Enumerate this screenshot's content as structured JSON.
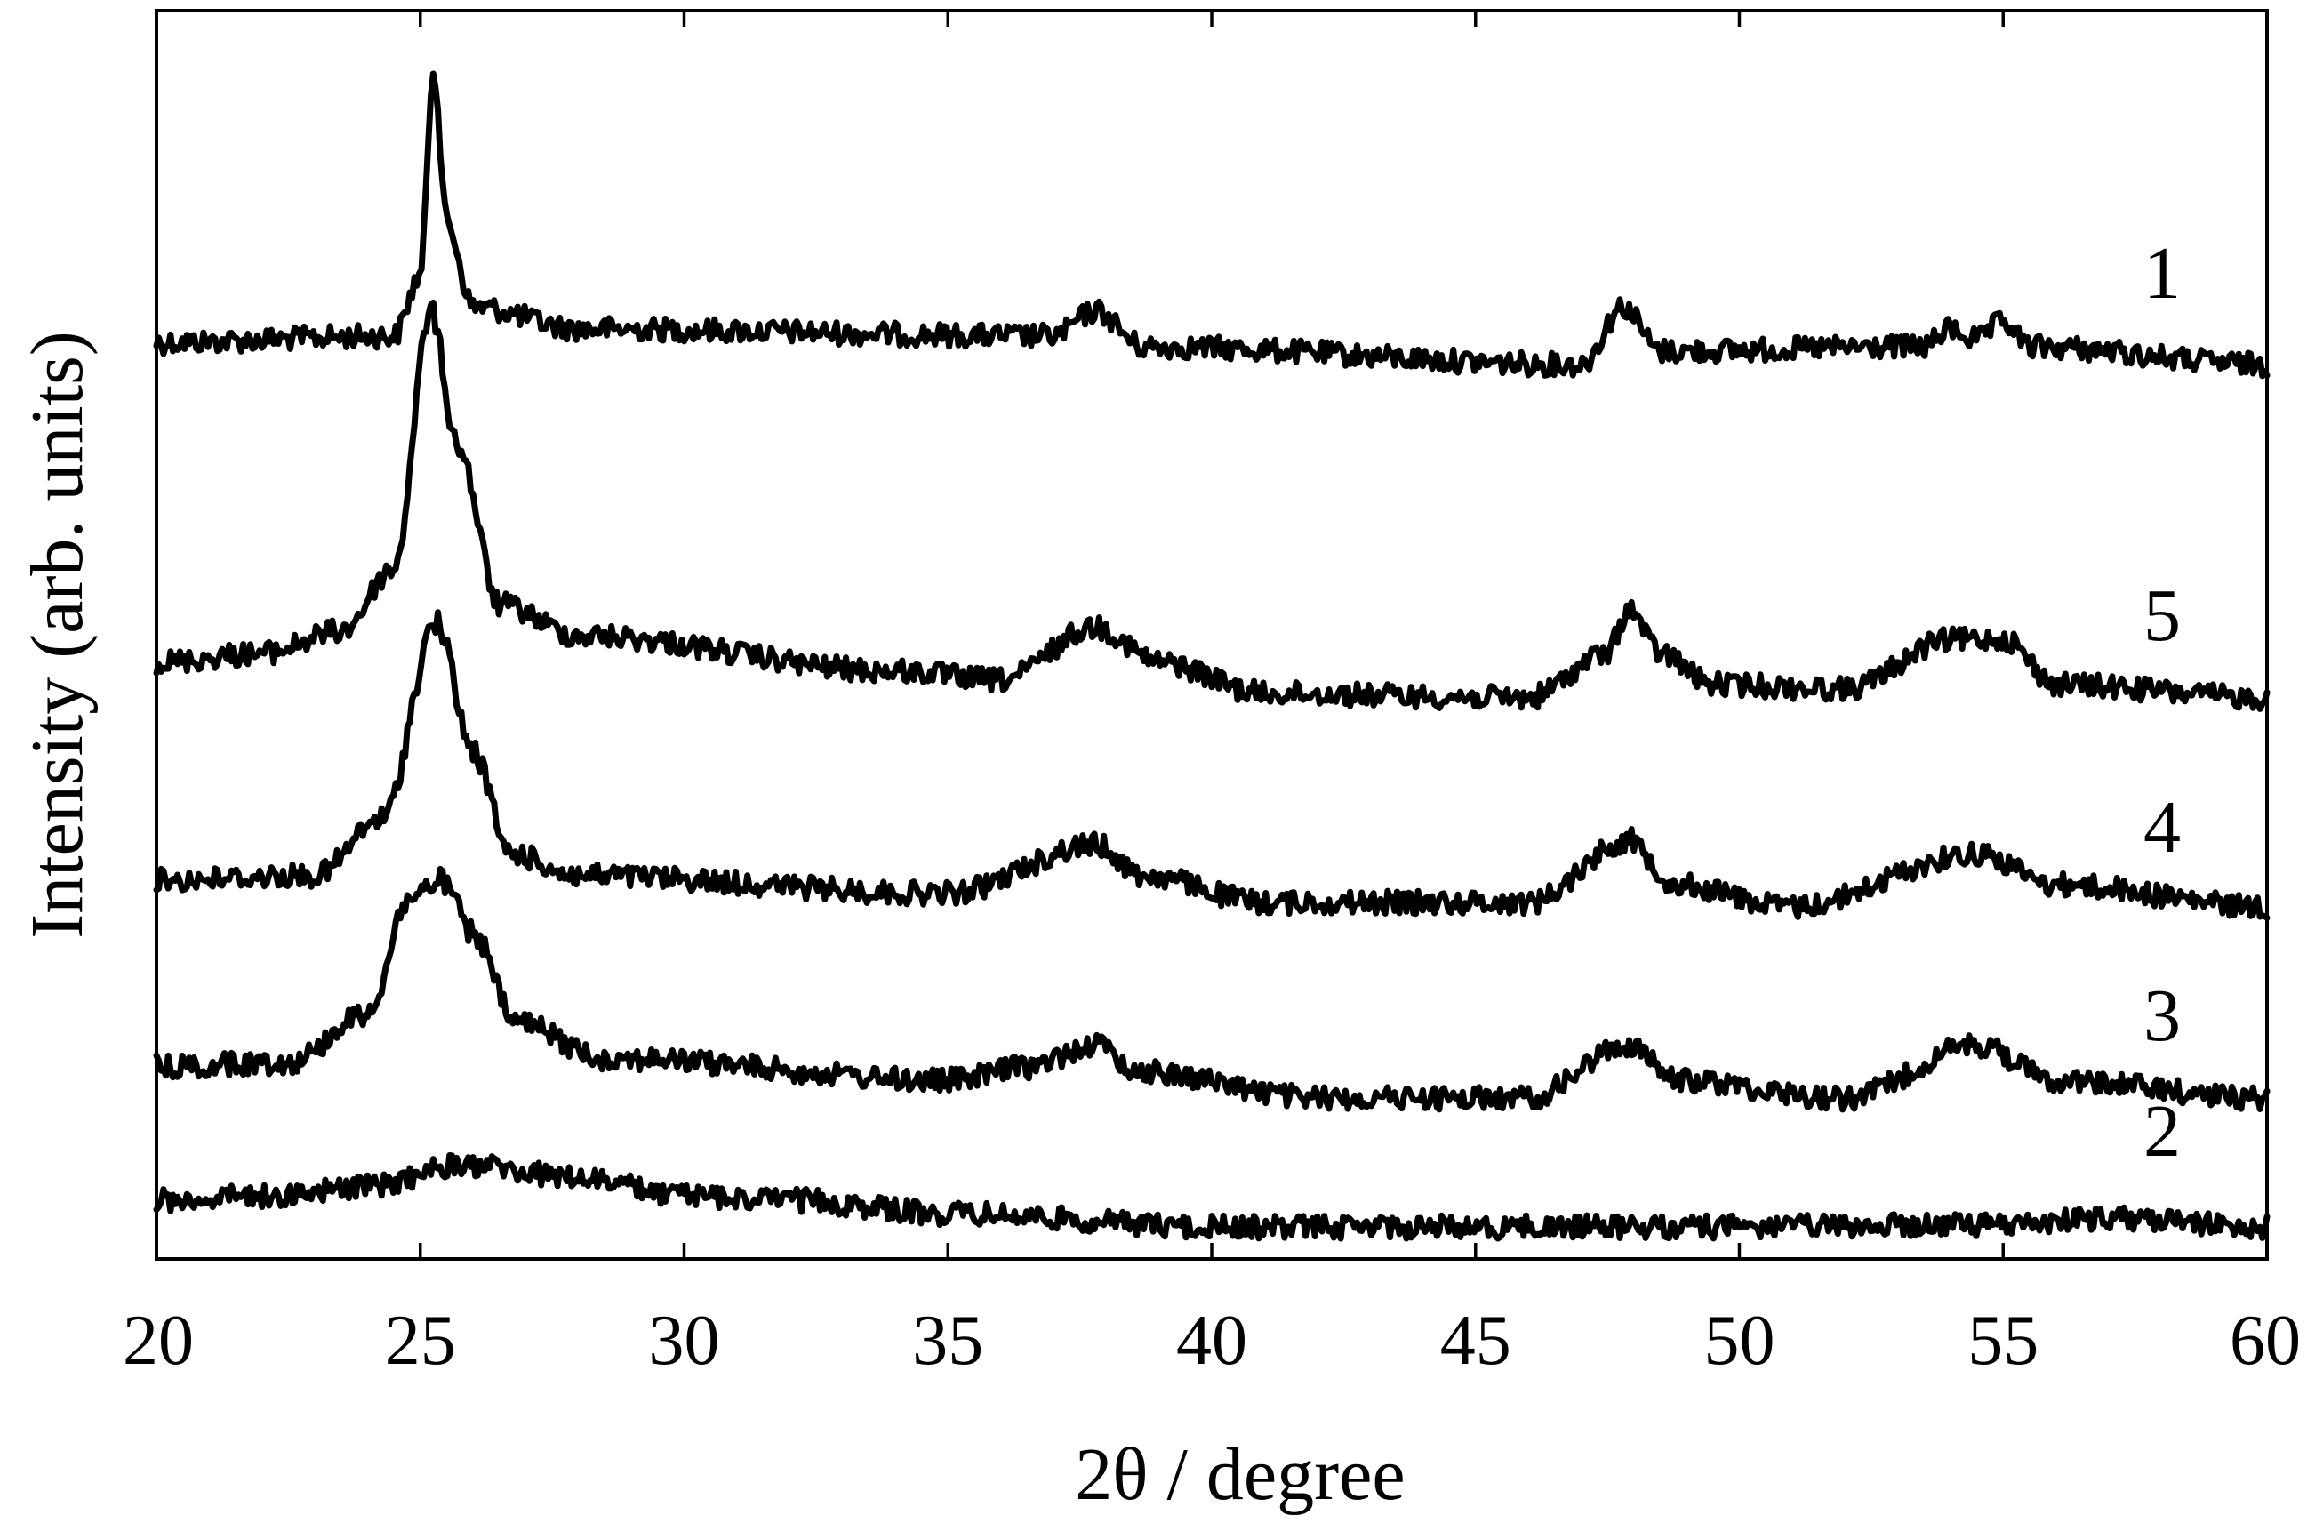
{
  "chart_data": {
    "type": "line",
    "title": "",
    "xlabel": "2θ / degree",
    "ylabel": "Intensity (arb. units)",
    "xlim": [
      20,
      60
    ],
    "x_ticks": [
      "20",
      "25",
      "30",
      "35",
      "40",
      "45",
      "50",
      "55",
      "60"
    ],
    "y_ticks_shown": false,
    "grid": false,
    "legend": "none",
    "series": [
      {
        "name": "1",
        "points": [
          [
            20,
            385
          ],
          [
            24.5,
            378
          ],
          [
            25.0,
            310
          ],
          [
            25.25,
            75
          ],
          [
            25.5,
            250
          ],
          [
            26.0,
            345
          ],
          [
            28.0,
            370
          ],
          [
            37.0,
            378
          ],
          [
            37.8,
            350
          ],
          [
            38.7,
            390
          ],
          [
            47.0,
            410
          ],
          [
            47.8,
            345
          ],
          [
            48.5,
            395
          ],
          [
            53.5,
            390
          ],
          [
            54.0,
            370
          ],
          [
            54.5,
            382
          ],
          [
            55.0,
            362
          ],
          [
            55.5,
            390
          ],
          [
            60,
            410
          ]
        ]
      },
      {
        "name": "5",
        "points": [
          [
            20,
            745
          ],
          [
            22,
            735
          ],
          [
            23.5,
            710
          ],
          [
            24.5,
            640
          ],
          [
            25.2,
            350
          ],
          [
            25.7,
            500
          ],
          [
            26.5,
            680
          ],
          [
            28,
            715
          ],
          [
            34,
            755
          ],
          [
            36,
            765
          ],
          [
            37.8,
            705
          ],
          [
            39,
            745
          ],
          [
            41,
            780
          ],
          [
            46,
            785
          ],
          [
            47.5,
            735
          ],
          [
            47.9,
            685
          ],
          [
            48.5,
            735
          ],
          [
            49.5,
            770
          ],
          [
            52,
            775
          ],
          [
            54,
            720
          ],
          [
            55.0,
            718
          ],
          [
            56,
            770
          ],
          [
            60,
            785
          ]
        ]
      },
      {
        "name": "4",
        "points": [
          [
            20,
            990
          ],
          [
            23,
            985
          ],
          [
            24.3,
            920
          ],
          [
            25.3,
            700
          ],
          [
            26.0,
            845
          ],
          [
            26.7,
            960
          ],
          [
            28,
            985
          ],
          [
            35,
            1005
          ],
          [
            37.8,
            950
          ],
          [
            38.7,
            985
          ],
          [
            41,
            1015
          ],
          [
            46,
            1015
          ],
          [
            47.9,
            945
          ],
          [
            48.8,
            995
          ],
          [
            51,
            1020
          ],
          [
            54.5,
            960
          ],
          [
            56,
            995
          ],
          [
            60,
            1020
          ]
        ]
      },
      {
        "name": "3",
        "points": [
          [
            20,
            1200
          ],
          [
            22.5,
            1195
          ],
          [
            24.0,
            1140
          ],
          [
            24.8,
            1010
          ],
          [
            25.4,
            990
          ],
          [
            26.0,
            1050
          ],
          [
            26.8,
            1150
          ],
          [
            28.5,
            1190
          ],
          [
            35,
            1215
          ],
          [
            36.5,
            1200
          ],
          [
            37.8,
            1175
          ],
          [
            38.6,
            1205
          ],
          [
            42,
            1235
          ],
          [
            46,
            1235
          ],
          [
            47.9,
            1175
          ],
          [
            48.8,
            1215
          ],
          [
            52,
            1235
          ],
          [
            54.5,
            1175
          ],
          [
            56,
            1215
          ],
          [
            60,
            1235
          ]
        ]
      },
      {
        "name": "2",
        "points": [
          [
            20,
            1350
          ],
          [
            22,
            1345
          ],
          [
            24,
            1335
          ],
          [
            25.8,
            1310
          ],
          [
            28,
            1325
          ],
          [
            30,
            1345
          ],
          [
            32,
            1350
          ],
          [
            35,
            1365
          ],
          [
            40,
            1380
          ],
          [
            45,
            1380
          ],
          [
            50,
            1380
          ],
          [
            55,
            1378
          ],
          [
            57,
            1370
          ],
          [
            60,
            1380
          ]
        ]
      }
    ]
  }
}
